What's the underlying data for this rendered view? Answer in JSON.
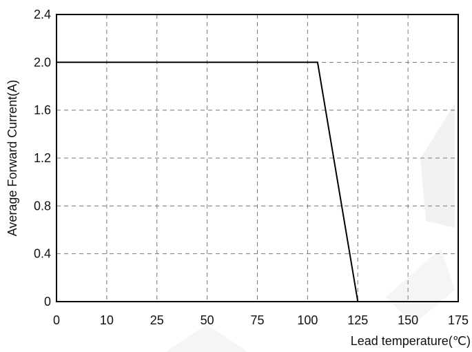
{
  "chart_data": {
    "type": "line",
    "xlabel": "Lead temperature(℃)",
    "ylabel": "Average Forward Current(A)",
    "x_ticks": [
      "0",
      "10",
      "25",
      "50",
      "75",
      "100",
      "125",
      "150",
      "175"
    ],
    "y_ticks": [
      "0",
      "0.4",
      "0.8",
      "1.2",
      "1.6",
      "2.0",
      "2.4"
    ],
    "ylim": [
      0,
      2.4
    ],
    "grid": true,
    "grid_style": "dashed",
    "series": [
      {
        "points": [
          {
            "x": 0,
            "y": 2.0
          },
          {
            "x": 105,
            "y": 2.0
          },
          {
            "x": 125,
            "y": 0
          }
        ]
      }
    ]
  }
}
